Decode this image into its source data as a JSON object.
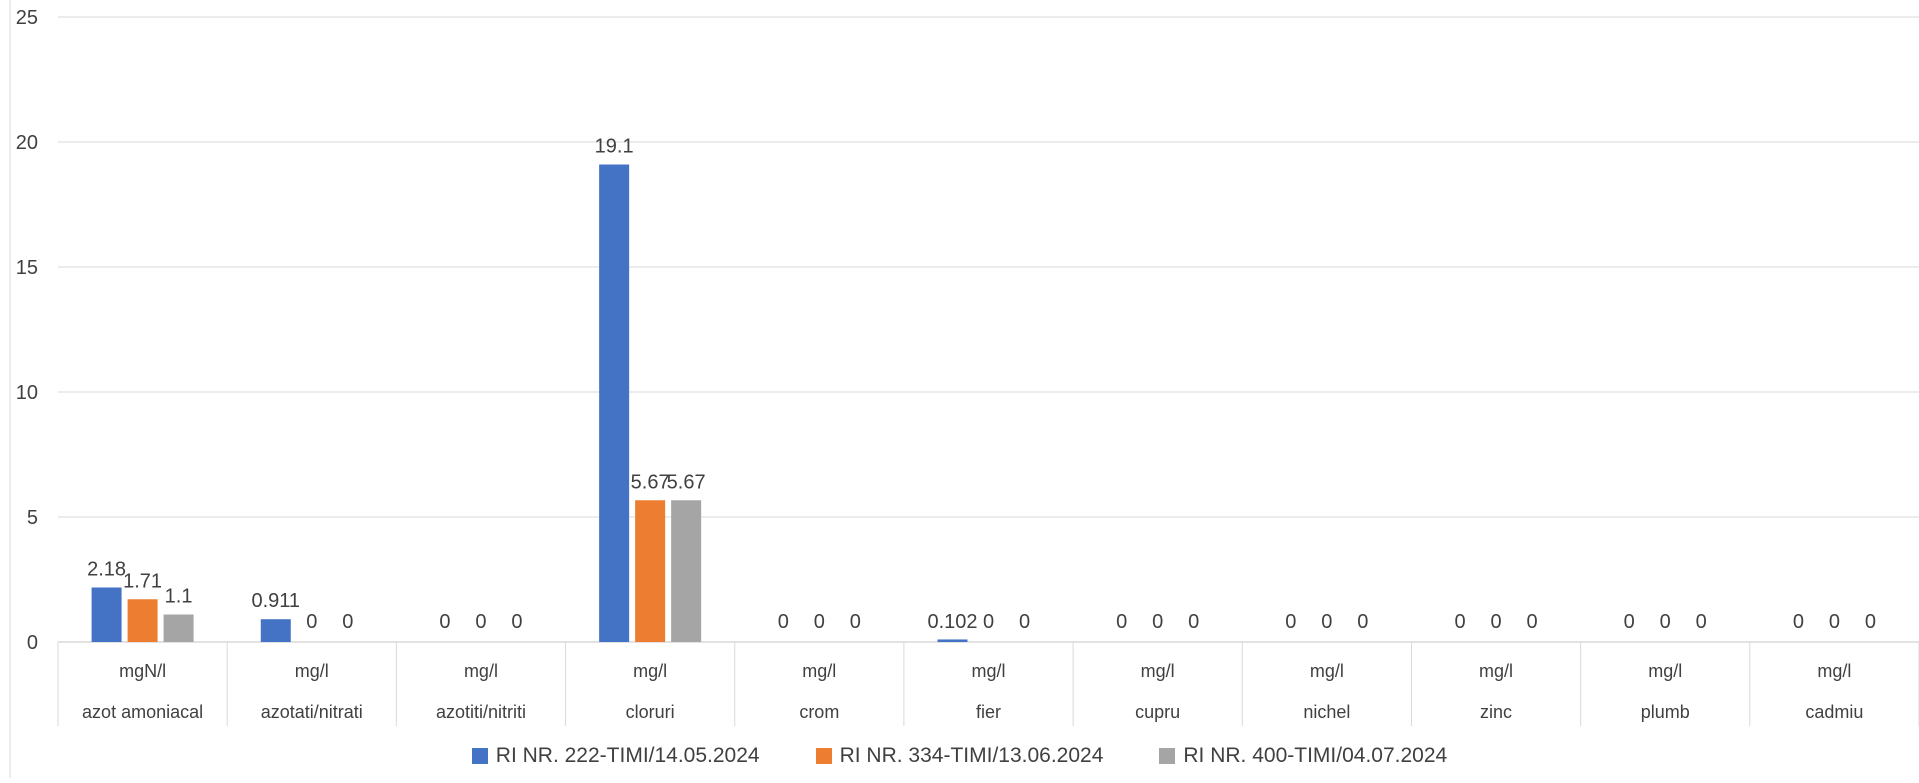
{
  "chart_data": {
    "type": "bar",
    "title": "",
    "xlabel": "",
    "ylabel": "",
    "ylim": [
      0,
      25
    ],
    "yticks": [
      "0",
      "5",
      "10",
      "15",
      "20",
      "25"
    ],
    "grid": true,
    "legend_position": "bottom",
    "categories": [
      {
        "unit": "mgN/l",
        "name": "azot amoniacal"
      },
      {
        "unit": "mg/l",
        "name": "azotati/nitrati"
      },
      {
        "unit": "mg/l",
        "name": "azotiti/nitriti"
      },
      {
        "unit": "mg/l",
        "name": "cloruri"
      },
      {
        "unit": "mg/l",
        "name": "crom"
      },
      {
        "unit": "mg/l",
        "name": "fier"
      },
      {
        "unit": "mg/l",
        "name": "cupru"
      },
      {
        "unit": "mg/l",
        "name": "nichel"
      },
      {
        "unit": "mg/l",
        "name": "zinc"
      },
      {
        "unit": "mg/l",
        "name": "plumb"
      },
      {
        "unit": "mg/l",
        "name": "cadmiu"
      }
    ],
    "series": [
      {
        "name": "RI NR. 222-TIMI/14.05.2024",
        "color": "#4472C4",
        "values": [
          2.18,
          0.911,
          0,
          19.1,
          0,
          0.102,
          0,
          0,
          0,
          0,
          0
        ],
        "labels": [
          "2.18",
          "0.911",
          "0",
          "19.1",
          "0",
          "0.102",
          "0",
          "0",
          "0",
          "0",
          "0"
        ]
      },
      {
        "name": "RI NR. 334-TIMI/13.06.2024",
        "color": "#ED7D31",
        "values": [
          1.71,
          0,
          0,
          5.67,
          0,
          0,
          0,
          0,
          0,
          0,
          0
        ],
        "labels": [
          "1.71",
          "0",
          "0",
          "5.67",
          "0",
          "0",
          "0",
          "0",
          "0",
          "0",
          "0"
        ]
      },
      {
        "name": "RI NR. 400-TIMI/04.07.2024",
        "color": "#A5A5A5",
        "values": [
          1.1,
          0,
          0,
          5.67,
          0,
          0,
          0,
          0,
          0,
          0,
          0
        ],
        "labels": [
          "1.1",
          "0",
          "0",
          "5.67",
          "0",
          "0",
          "0",
          "0",
          "0",
          "0",
          "0"
        ]
      }
    ]
  }
}
